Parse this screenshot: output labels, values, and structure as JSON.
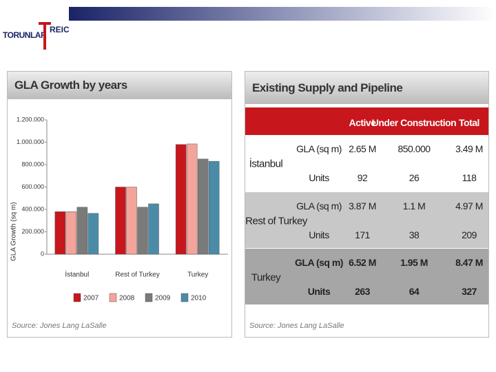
{
  "logo": {
    "left": "TORUNLAR",
    "right": "REIC"
  },
  "chart_data": {
    "type": "bar",
    "title": "GLA Growth by years",
    "y_label": "GLA Growth (sq m)",
    "categories": [
      "İstanbul",
      "Rest of Turkey",
      "Turkey"
    ],
    "series": [
      {
        "name": "2007",
        "color": "#c8161d",
        "values": [
          380000,
          600000,
          980000
        ]
      },
      {
        "name": "2008",
        "color": "#f4a49a",
        "values": [
          380000,
          600000,
          985000
        ]
      },
      {
        "name": "2009",
        "color": "#7a7a7a",
        "values": [
          420000,
          420000,
          850000
        ]
      },
      {
        "name": "2010",
        "color": "#4a8ca8",
        "values": [
          365000,
          450000,
          830000
        ]
      }
    ],
    "ylim": [
      0,
      1200000
    ],
    "yticks": [
      0,
      {
        "value": 200000,
        "label": "200.000"
      },
      {
        "value": 400000,
        "label": "400.000"
      },
      {
        "value": 600000,
        "label": "600.000"
      },
      {
        "value": 800000,
        "label": "800.000"
      },
      {
        "value": 1000000,
        "label": "1.000.000"
      },
      {
        "value": 1200000,
        "label": "1.200.000"
      }
    ],
    "grid": false,
    "source": "Source: Jones Lang LaSalle"
  },
  "table": {
    "title": "Existing Supply and Pipeline",
    "columns": [
      "Active",
      "Under Construction",
      "Total"
    ],
    "groups": [
      {
        "name": "İstanbul",
        "rows": [
          [
            "GLA (sq m)",
            "2.65 M",
            "850.000",
            "3.49 M"
          ],
          [
            "Units",
            "92",
            "26",
            "118"
          ]
        ]
      },
      {
        "name": "Rest of Turkey",
        "rows": [
          [
            "GLA (sq m)",
            "3.87 M",
            "1.1 M",
            "4.97 M"
          ],
          [
            "Units",
            "171",
            "38",
            "209"
          ]
        ]
      },
      {
        "name": "Turkey",
        "rows": [
          [
            "GLA (sq m)",
            "6.52 M",
            "1.95 M",
            "8.47 M"
          ],
          [
            "Units",
            "263",
            "64",
            "327"
          ]
        ]
      }
    ],
    "source": "Source: Jones Lang LaSalle"
  }
}
